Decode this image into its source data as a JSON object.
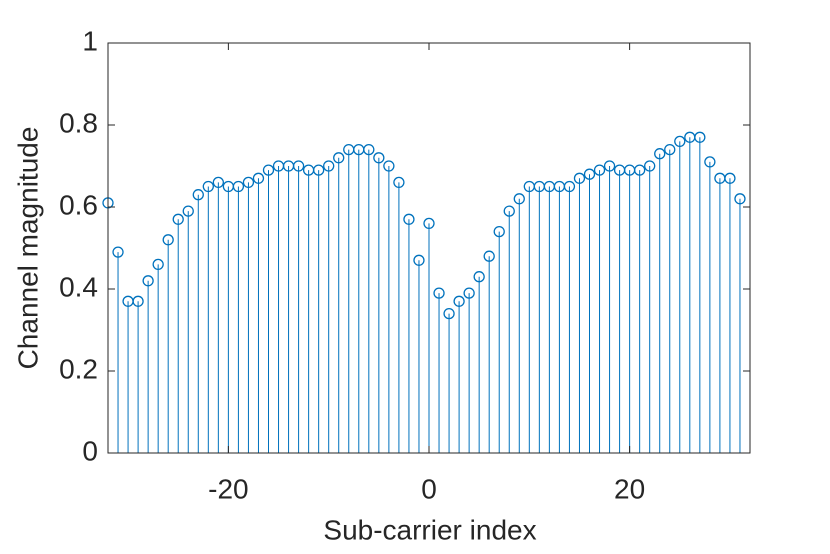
{
  "chart_data": {
    "type": "stem",
    "xlabel": "Sub-carrier index",
    "ylabel": "Channel magnitude",
    "x": [
      -32,
      -31,
      -30,
      -29,
      -28,
      -27,
      -26,
      -25,
      -24,
      -23,
      -22,
      -21,
      -20,
      -19,
      -18,
      -17,
      -16,
      -15,
      -14,
      -13,
      -12,
      -11,
      -10,
      -9,
      -8,
      -7,
      -6,
      -5,
      -4,
      -3,
      -2,
      -1,
      0,
      1,
      2,
      3,
      4,
      5,
      6,
      7,
      8,
      9,
      10,
      11,
      12,
      13,
      14,
      15,
      16,
      17,
      18,
      19,
      20,
      21,
      22,
      23,
      24,
      25,
      26,
      27,
      28,
      29,
      30,
      31
    ],
    "values": [
      0.61,
      0.49,
      0.37,
      0.37,
      0.42,
      0.46,
      0.52,
      0.57,
      0.59,
      0.63,
      0.65,
      0.66,
      0.65,
      0.65,
      0.66,
      0.67,
      0.69,
      0.7,
      0.7,
      0.7,
      0.69,
      0.69,
      0.7,
      0.72,
      0.74,
      0.74,
      0.74,
      0.72,
      0.7,
      0.66,
      0.57,
      0.47,
      0.56,
      0.39,
      0.34,
      0.37,
      0.39,
      0.43,
      0.48,
      0.54,
      0.59,
      0.62,
      0.65,
      0.65,
      0.65,
      0.65,
      0.65,
      0.67,
      0.68,
      0.69,
      0.7,
      0.69,
      0.69,
      0.69,
      0.7,
      0.73,
      0.74,
      0.76,
      0.77,
      0.77,
      0.71,
      0.67,
      0.67,
      0.62
    ],
    "color": "#0072bd",
    "xlim": [
      -32,
      32
    ],
    "xticks": [
      -20,
      0,
      20
    ],
    "ylim": [
      0,
      1
    ],
    "yticks": [
      0,
      0.2,
      0.4,
      0.6,
      0.8,
      1
    ],
    "grid": false
  }
}
